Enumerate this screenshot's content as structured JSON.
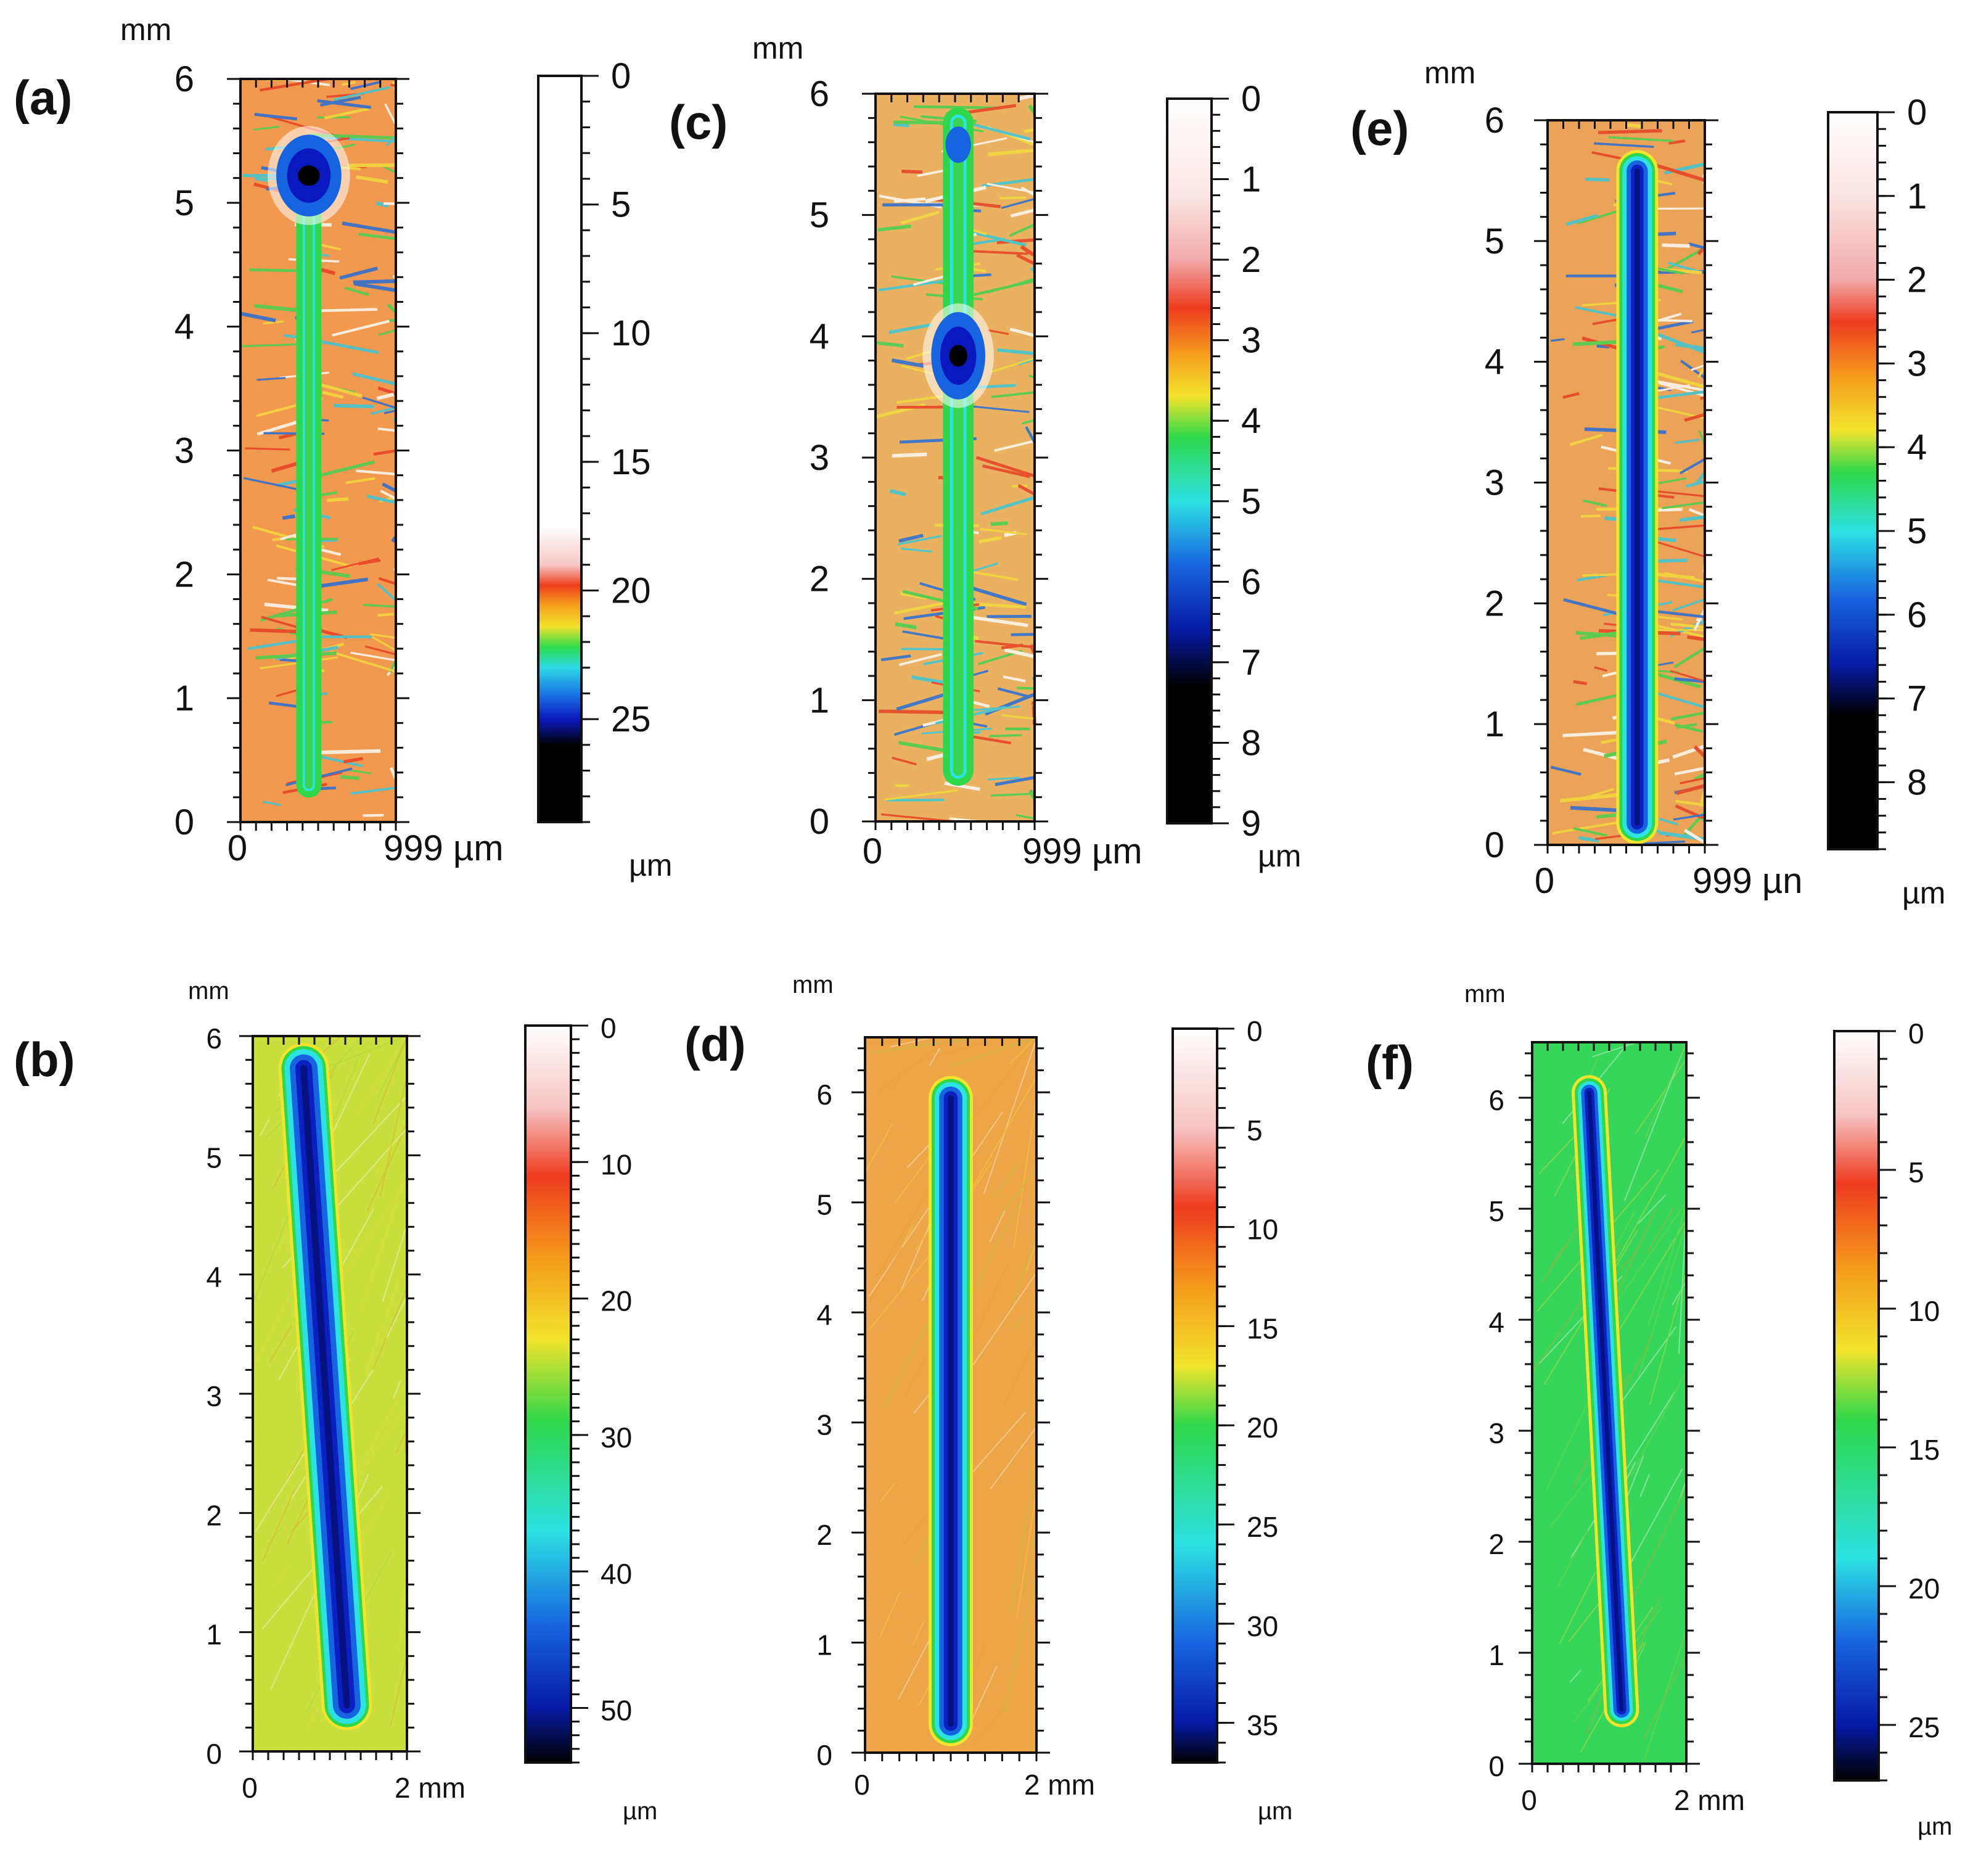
{
  "figure": {
    "description_panels": [
      "a",
      "b",
      "c",
      "d",
      "e",
      "f"
    ]
  },
  "chart_data": [
    {
      "panel": "(a)",
      "type": "heatmap",
      "y_axis": {
        "unit": "mm",
        "range": [
          0,
          6
        ],
        "ticks": [
          "0",
          "1",
          "2",
          "3",
          "4",
          "5",
          "6"
        ]
      },
      "x_axis": {
        "tick_start": "0",
        "tick_end": "999 µm",
        "range": [
          0,
          999
        ]
      },
      "colorbar": {
        "unit": "µm",
        "range": [
          0,
          29
        ],
        "ticks": [
          "0",
          "5",
          "10",
          "15",
          "20",
          "25"
        ],
        "stops": [
          {
            "v": 0,
            "c": "#ffffff"
          },
          {
            "v": 17.5,
            "c": "#ffffff"
          },
          {
            "v": 19,
            "c": "#f7c7c7"
          },
          {
            "v": 19.8,
            "c": "#ee3d1a"
          },
          {
            "v": 20.6,
            "c": "#f5a21c"
          },
          {
            "v": 21.4,
            "c": "#f2e22a"
          },
          {
            "v": 22.2,
            "c": "#2fdc4c"
          },
          {
            "v": 23,
            "c": "#2bd9e6"
          },
          {
            "v": 24,
            "c": "#1a78e6"
          },
          {
            "v": 25,
            "c": "#0a18c0"
          },
          {
            "v": 26,
            "c": "#000000"
          },
          {
            "v": 29,
            "c": "#000000"
          }
        ]
      },
      "feature": "irregular scar with deep pit near 5.2 mm",
      "background_color": "#f19a4f"
    },
    {
      "panel": "(b)",
      "type": "heatmap",
      "y_axis": {
        "unit": "mm",
        "range": [
          0,
          6
        ],
        "ticks": [
          "0",
          "1",
          "2",
          "3",
          "4",
          "5",
          "6"
        ]
      },
      "x_axis": {
        "tick_start": "0",
        "tick_end": "2 mm",
        "range": [
          0,
          2
        ]
      },
      "colorbar": {
        "unit": "µm",
        "range": [
          0,
          54
        ],
        "ticks": [
          "0",
          "10",
          "20",
          "30",
          "40",
          "50"
        ],
        "stops": [
          {
            "v": 0,
            "c": "#ffffff"
          },
          {
            "v": 6,
            "c": "#f7c4c4"
          },
          {
            "v": 11,
            "c": "#ee3b1f"
          },
          {
            "v": 17,
            "c": "#f59a1a"
          },
          {
            "v": 23,
            "c": "#f2e42c"
          },
          {
            "v": 29,
            "c": "#2fd84a"
          },
          {
            "v": 37,
            "c": "#2ce2e3"
          },
          {
            "v": 44,
            "c": "#1764e0"
          },
          {
            "v": 50,
            "c": "#061aa6"
          },
          {
            "v": 54,
            "c": "#000000"
          }
        ]
      },
      "feature": "straight wear track, max depth ~50 µm",
      "background_color": "#c8df3e"
    },
    {
      "panel": "(c)",
      "type": "heatmap",
      "y_axis": {
        "unit": "mm",
        "range": [
          0,
          6
        ],
        "ticks": [
          "0",
          "1",
          "2",
          "3",
          "4",
          "5",
          "6"
        ]
      },
      "x_axis": {
        "tick_start": "0",
        "tick_end": "999 µm",
        "range": [
          0,
          999
        ]
      },
      "colorbar": {
        "unit": "µm",
        "range": [
          0,
          9
        ],
        "ticks": [
          "0",
          "1",
          "2",
          "3",
          "4",
          "5",
          "6",
          "7",
          "8",
          "9"
        ],
        "stops": [
          {
            "v": 0,
            "c": "#ffffff"
          },
          {
            "v": 1.2,
            "c": "#fbe6e6"
          },
          {
            "v": 2,
            "c": "#f2a9a9"
          },
          {
            "v": 2.6,
            "c": "#ee3b1f"
          },
          {
            "v": 3.2,
            "c": "#f5a11c"
          },
          {
            "v": 3.7,
            "c": "#f2e42c"
          },
          {
            "v": 4.2,
            "c": "#2fd84a"
          },
          {
            "v": 5,
            "c": "#2ce2e3"
          },
          {
            "v": 5.8,
            "c": "#1764e0"
          },
          {
            "v": 6.6,
            "c": "#061aa6"
          },
          {
            "v": 7.3,
            "c": "#000000"
          },
          {
            "v": 9,
            "c": "#000000"
          }
        ]
      },
      "feature": "scar with deep pit near 3.9 mm",
      "background_color": "#e9b160"
    },
    {
      "panel": "(d)",
      "type": "heatmap",
      "y_axis": {
        "unit": "mm",
        "range": [
          0,
          6.5
        ],
        "ticks": [
          "0",
          "1",
          "2",
          "3",
          "4",
          "5",
          "6"
        ]
      },
      "x_axis": {
        "tick_start": "0",
        "tick_end": "2 mm",
        "range": [
          0,
          2
        ]
      },
      "colorbar": {
        "unit": "µm",
        "range": [
          0,
          37
        ],
        "ticks": [
          "0",
          "5",
          "10",
          "15",
          "20",
          "25",
          "30",
          "35"
        ],
        "stops": [
          {
            "v": 0,
            "c": "#ffffff"
          },
          {
            "v": 5,
            "c": "#f7c4c4"
          },
          {
            "v": 9,
            "c": "#ee3b1f"
          },
          {
            "v": 13,
            "c": "#f59a1a"
          },
          {
            "v": 17,
            "c": "#f2e42c"
          },
          {
            "v": 20,
            "c": "#2fd84a"
          },
          {
            "v": 26,
            "c": "#2ce2e3"
          },
          {
            "v": 31,
            "c": "#1764e0"
          },
          {
            "v": 35,
            "c": "#061aa6"
          },
          {
            "v": 37,
            "c": "#000000"
          }
        ]
      },
      "feature": "straight vertical wear track, max depth ~35 µm",
      "background_color": "#eda647"
    },
    {
      "panel": "(e)",
      "type": "heatmap",
      "y_axis": {
        "unit": "mm",
        "range": [
          0,
          6
        ],
        "ticks": [
          "0",
          "1",
          "2",
          "3",
          "4",
          "5",
          "6"
        ]
      },
      "x_axis": {
        "tick_start": "0",
        "tick_end": "999 µn",
        "range": [
          0,
          999
        ]
      },
      "colorbar": {
        "unit": "µm",
        "range": [
          0,
          8.8
        ],
        "ticks": [
          "0",
          "1",
          "2",
          "3",
          "4",
          "5",
          "6",
          "7",
          "8"
        ],
        "stops": [
          {
            "v": 0,
            "c": "#ffffff"
          },
          {
            "v": 1,
            "c": "#fbe3e3"
          },
          {
            "v": 2,
            "c": "#f2a9a9"
          },
          {
            "v": 2.5,
            "c": "#ee3b1f"
          },
          {
            "v": 3.2,
            "c": "#f5a11c"
          },
          {
            "v": 3.8,
            "c": "#f2e42c"
          },
          {
            "v": 4.3,
            "c": "#2fd84a"
          },
          {
            "v": 5,
            "c": "#2ce2e3"
          },
          {
            "v": 5.8,
            "c": "#1764e0"
          },
          {
            "v": 6.6,
            "c": "#061aa6"
          },
          {
            "v": 7.2,
            "c": "#000000"
          },
          {
            "v": 8.8,
            "c": "#000000"
          }
        ]
      },
      "feature": "uniform wear track, max depth ~7 µm",
      "background_color": "#eba357"
    },
    {
      "panel": "(f)",
      "type": "heatmap",
      "y_axis": {
        "unit": "mm",
        "range": [
          0,
          6.5
        ],
        "ticks": [
          "0",
          "1",
          "2",
          "3",
          "4",
          "5",
          "6"
        ]
      },
      "x_axis": {
        "tick_start": "0",
        "tick_end": "2 mm",
        "range": [
          0,
          2
        ]
      },
      "colorbar": {
        "unit": "µm",
        "range": [
          0,
          27
        ],
        "ticks": [
          "0",
          "5",
          "10",
          "15",
          "20",
          "25"
        ],
        "stops": [
          {
            "v": 0,
            "c": "#ffffff"
          },
          {
            "v": 3,
            "c": "#f7c4c4"
          },
          {
            "v": 5.5,
            "c": "#ee3b1f"
          },
          {
            "v": 8.5,
            "c": "#f59a1a"
          },
          {
            "v": 11.5,
            "c": "#f2e42c"
          },
          {
            "v": 14,
            "c": "#2fd84a"
          },
          {
            "v": 19,
            "c": "#2ce2e3"
          },
          {
            "v": 22,
            "c": "#1764e0"
          },
          {
            "v": 25,
            "c": "#061aa6"
          },
          {
            "v": 27,
            "c": "#000000"
          }
        ]
      },
      "feature": "straight wear track, max depth ~25 µm",
      "background_color": "#36d65a"
    }
  ]
}
